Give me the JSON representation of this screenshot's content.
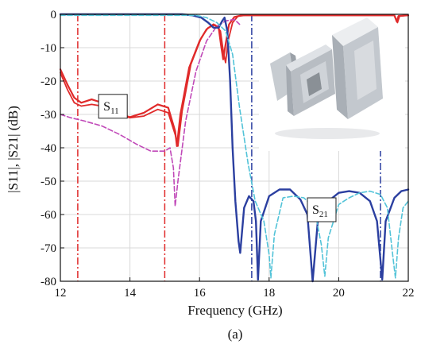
{
  "chart_data": {
    "type": "line",
    "title": "",
    "caption": "(a)",
    "xlabel": "Frequency (GHz)",
    "ylabel": "|S11|, |S21| (dB)",
    "xlim": [
      12,
      22
    ],
    "ylim": [
      -80,
      0
    ],
    "x_ticks": [
      12,
      14,
      16,
      18,
      20,
      22
    ],
    "y_ticks": [
      0,
      -10,
      -20,
      -30,
      -40,
      -50,
      -60,
      -70,
      -80
    ],
    "grid": true,
    "legend": "none",
    "annotations": [
      {
        "text": "S",
        "subscript": "11",
        "x": 13.1,
        "y": -24
      },
      {
        "text": "S",
        "subscript": "21",
        "x": 19.1,
        "y": -55
      }
    ],
    "inset_image": "waveguide-filter-photo",
    "vertical_lines": [
      {
        "x": 12.5,
        "color": "#e02a2a",
        "style": "dash-dot"
      },
      {
        "x": 15.0,
        "color": "#e02a2a",
        "style": "dash-dot"
      },
      {
        "x": 17.5,
        "color": "#2b3fa0",
        "style": "dash-dot"
      },
      {
        "x": 21.2,
        "color": "#2b3fa0",
        "style": "dash-dot"
      }
    ],
    "series": [
      {
        "color": "#e02a2a",
        "style": "solid",
        "width": 2.2,
        "points": [
          [
            12,
            -16.5
          ],
          [
            12.2,
            -21
          ],
          [
            12.4,
            -25
          ],
          [
            12.6,
            -26.5
          ],
          [
            12.9,
            -25.5
          ],
          [
            13.2,
            -26.5
          ],
          [
            13.6,
            -29.5
          ],
          [
            14.0,
            -30.8
          ],
          [
            14.4,
            -29.5
          ],
          [
            14.8,
            -27
          ],
          [
            15.1,
            -28
          ],
          [
            15.3,
            -35
          ],
          [
            15.35,
            -39.5
          ],
          [
            15.45,
            -30
          ],
          [
            15.7,
            -16
          ],
          [
            16.0,
            -8
          ],
          [
            16.2,
            -4.5
          ],
          [
            16.4,
            -3
          ],
          [
            16.55,
            -4
          ],
          [
            16.62,
            -9.5
          ],
          [
            16.68,
            -13.5
          ],
          [
            16.75,
            -9
          ],
          [
            16.85,
            -3
          ],
          [
            17.0,
            -0.8
          ],
          [
            17.2,
            -0.3
          ],
          [
            21.6,
            -0.3
          ],
          [
            21.67,
            -2.2
          ],
          [
            21.72,
            -0.5
          ],
          [
            22,
            -0.3
          ]
        ]
      },
      {
        "color": "#e02a2a",
        "style": "solid",
        "width": 1.8,
        "points": [
          [
            12,
            -17.5
          ],
          [
            12.2,
            -22.5
          ],
          [
            12.4,
            -26.5
          ],
          [
            12.6,
            -27.5
          ],
          [
            12.9,
            -27
          ],
          [
            13.2,
            -27.5
          ],
          [
            13.6,
            -30
          ],
          [
            14.0,
            -31
          ],
          [
            14.4,
            -30.5
          ],
          [
            14.8,
            -28.5
          ],
          [
            15.1,
            -29.5
          ],
          [
            15.3,
            -36
          ],
          [
            15.38,
            -39.5
          ],
          [
            15.5,
            -29
          ],
          [
            15.75,
            -15
          ],
          [
            16.05,
            -7
          ],
          [
            16.25,
            -4
          ],
          [
            16.45,
            -3.2
          ],
          [
            16.6,
            -5
          ],
          [
            16.68,
            -11
          ],
          [
            16.75,
            -14.5
          ],
          [
            16.82,
            -8
          ],
          [
            16.95,
            -2.5
          ],
          [
            17.1,
            -0.6
          ],
          [
            17.3,
            -0.3
          ],
          [
            21.6,
            -0.3
          ],
          [
            21.69,
            -2.5
          ],
          [
            21.75,
            -0.5
          ],
          [
            22,
            -0.3
          ]
        ]
      },
      {
        "color": "#c048b8",
        "style": "dashed",
        "width": 1.6,
        "points": [
          [
            12,
            -30
          ],
          [
            12.3,
            -31
          ],
          [
            12.7,
            -32
          ],
          [
            13.2,
            -33.5
          ],
          [
            13.7,
            -36
          ],
          [
            14.2,
            -39
          ],
          [
            14.6,
            -41
          ],
          [
            15.0,
            -41
          ],
          [
            15.15,
            -40
          ],
          [
            15.25,
            -46
          ],
          [
            15.3,
            -57.5
          ],
          [
            15.38,
            -50
          ],
          [
            15.6,
            -32
          ],
          [
            15.9,
            -17
          ],
          [
            16.2,
            -8
          ],
          [
            16.5,
            -3.5
          ],
          [
            16.75,
            -2
          ],
          [
            17.0,
            -1.5
          ],
          [
            17.15,
            -3
          ]
        ]
      },
      {
        "color": "#2b3fa0",
        "style": "solid",
        "width": 2.4,
        "points": [
          [
            12,
            0
          ],
          [
            15.5,
            0
          ],
          [
            15.8,
            -0.3
          ],
          [
            16.05,
            -1
          ],
          [
            16.25,
            -2.5
          ],
          [
            16.4,
            -4
          ],
          [
            16.55,
            -4
          ],
          [
            16.65,
            -2
          ],
          [
            16.72,
            -1
          ],
          [
            16.8,
            -5
          ],
          [
            16.88,
            -20
          ],
          [
            16.95,
            -40
          ],
          [
            17.03,
            -56
          ],
          [
            17.12,
            -68
          ],
          [
            17.17,
            -71.5
          ],
          [
            17.28,
            -58
          ],
          [
            17.42,
            -54.5
          ],
          [
            17.55,
            -56
          ],
          [
            17.62,
            -62
          ],
          [
            17.68,
            -79.5
          ],
          [
            17.76,
            -62
          ],
          [
            18.0,
            -54.5
          ],
          [
            18.3,
            -52.5
          ],
          [
            18.6,
            -52.5
          ],
          [
            18.9,
            -55.5
          ],
          [
            19.1,
            -60
          ],
          [
            19.25,
            -80
          ],
          [
            19.4,
            -62
          ],
          [
            19.7,
            -56
          ],
          [
            20.0,
            -53.5
          ],
          [
            20.3,
            -53
          ],
          [
            20.6,
            -53.5
          ],
          [
            20.9,
            -56
          ],
          [
            21.1,
            -62
          ],
          [
            21.25,
            -79.5
          ],
          [
            21.35,
            -62
          ],
          [
            21.6,
            -55
          ],
          [
            21.8,
            -53
          ],
          [
            22,
            -52.5
          ]
        ]
      },
      {
        "color": "#52c3d8",
        "style": "dashed",
        "width": 1.6,
        "points": [
          [
            12,
            -0.3
          ],
          [
            15.9,
            -0.3
          ],
          [
            16.2,
            -1
          ],
          [
            16.5,
            -2.5
          ],
          [
            16.75,
            -5
          ],
          [
            16.95,
            -12
          ],
          [
            17.15,
            -28
          ],
          [
            17.4,
            -45
          ],
          [
            17.6,
            -56
          ],
          [
            17.85,
            -62
          ],
          [
            18.0,
            -72
          ],
          [
            18.05,
            -79
          ],
          [
            18.15,
            -66
          ],
          [
            18.4,
            -55
          ],
          [
            18.7,
            -54.5
          ],
          [
            19.0,
            -55
          ],
          [
            19.3,
            -58
          ],
          [
            19.5,
            -69
          ],
          [
            19.6,
            -78.5
          ],
          [
            19.7,
            -67
          ],
          [
            20.0,
            -57
          ],
          [
            20.3,
            -55
          ],
          [
            20.6,
            -53.5
          ],
          [
            20.9,
            -53
          ],
          [
            21.2,
            -54
          ],
          [
            21.4,
            -58
          ],
          [
            21.55,
            -72
          ],
          [
            21.63,
            -79
          ],
          [
            21.72,
            -67
          ],
          [
            21.85,
            -58
          ],
          [
            22,
            -56
          ]
        ]
      }
    ]
  }
}
